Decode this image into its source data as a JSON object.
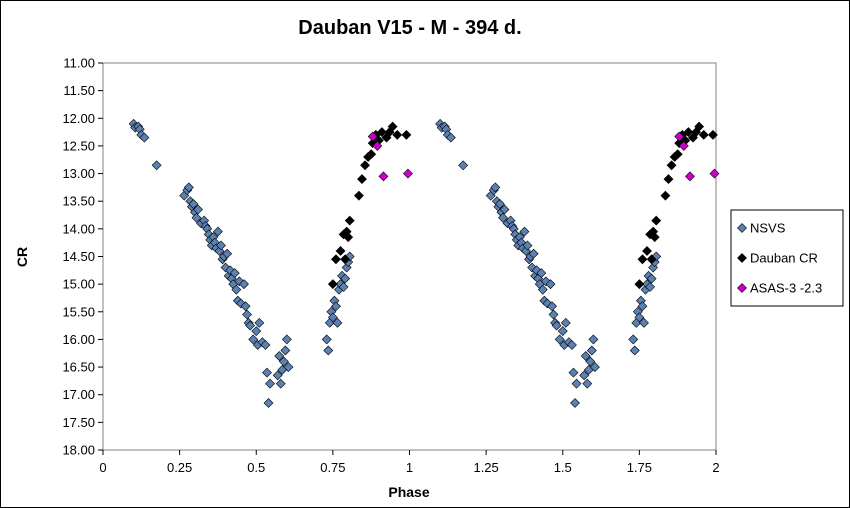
{
  "chart_data": {
    "type": "scatter",
    "title": "Dauban V15 - M - 394 d.",
    "xlabel": "Phase",
    "ylabel": "CR",
    "xlim": [
      0,
      2
    ],
    "ylim": [
      11.0,
      18.0
    ],
    "y_inverted": true,
    "x_ticks": [
      "0",
      "0.25",
      "0.5",
      "0.75",
      "1",
      "1.25",
      "1.5",
      "1.75",
      "2"
    ],
    "y_ticks": [
      "11.00",
      "11.50",
      "12.00",
      "12.50",
      "13.00",
      "13.50",
      "14.00",
      "14.50",
      "15.00",
      "15.50",
      "16.00",
      "16.50",
      "17.00",
      "17.50",
      "18.00"
    ],
    "grid": false,
    "legend_position": "right",
    "series": [
      {
        "name": "NSVS",
        "color": "#5B80B2",
        "marker": "diamond",
        "points": [
          [
            0.1,
            12.1
          ],
          [
            0.105,
            12.17
          ],
          [
            0.115,
            12.15
          ],
          [
            0.12,
            12.2
          ],
          [
            0.125,
            12.3
          ],
          [
            0.135,
            12.35
          ],
          [
            0.175,
            12.85
          ],
          [
            0.265,
            13.4
          ],
          [
            0.275,
            13.3
          ],
          [
            0.28,
            13.25
          ],
          [
            0.285,
            13.5
          ],
          [
            0.29,
            13.6
          ],
          [
            0.295,
            13.55
          ],
          [
            0.3,
            13.7
          ],
          [
            0.305,
            13.8
          ],
          [
            0.31,
            13.65
          ],
          [
            0.32,
            13.9
          ],
          [
            0.33,
            13.85
          ],
          [
            0.335,
            13.95
          ],
          [
            0.34,
            14.0
          ],
          [
            0.345,
            14.1
          ],
          [
            0.35,
            14.2
          ],
          [
            0.355,
            14.3
          ],
          [
            0.36,
            14.15
          ],
          [
            0.365,
            14.25
          ],
          [
            0.37,
            14.35
          ],
          [
            0.375,
            14.05
          ],
          [
            0.38,
            14.4
          ],
          [
            0.385,
            14.3
          ],
          [
            0.39,
            14.55
          ],
          [
            0.395,
            14.5
          ],
          [
            0.4,
            14.7
          ],
          [
            0.405,
            14.45
          ],
          [
            0.41,
            14.85
          ],
          [
            0.415,
            14.75
          ],
          [
            0.42,
            14.9
          ],
          [
            0.425,
            15.0
          ],
          [
            0.43,
            14.8
          ],
          [
            0.435,
            15.1
          ],
          [
            0.44,
            15.3
          ],
          [
            0.445,
            14.95
          ],
          [
            0.45,
            15.35
          ],
          [
            0.46,
            15.0
          ],
          [
            0.465,
            15.4
          ],
          [
            0.47,
            15.55
          ],
          [
            0.475,
            15.7
          ],
          [
            0.48,
            15.75
          ],
          [
            0.49,
            16.0
          ],
          [
            0.5,
            15.85
          ],
          [
            0.505,
            16.1
          ],
          [
            0.51,
            15.7
          ],
          [
            0.52,
            16.05
          ],
          [
            0.53,
            16.1
          ],
          [
            0.535,
            16.6
          ],
          [
            0.54,
            17.15
          ],
          [
            0.545,
            16.8
          ],
          [
            0.57,
            16.65
          ],
          [
            0.575,
            16.3
          ],
          [
            0.58,
            16.8
          ],
          [
            0.585,
            16.55
          ],
          [
            0.59,
            16.4
          ],
          [
            0.595,
            16.2
          ],
          [
            0.6,
            16.0
          ],
          [
            0.605,
            16.5
          ],
          [
            0.73,
            16.0
          ],
          [
            0.735,
            16.2
          ],
          [
            0.74,
            15.7
          ],
          [
            0.745,
            15.5
          ],
          [
            0.75,
            15.6
          ],
          [
            0.755,
            15.3
          ],
          [
            0.76,
            15.4
          ],
          [
            0.765,
            15.7
          ],
          [
            0.77,
            15.1
          ],
          [
            0.775,
            15.0
          ],
          [
            0.78,
            14.85
          ],
          [
            0.785,
            15.05
          ],
          [
            0.79,
            14.9
          ],
          [
            0.795,
            14.7
          ],
          [
            0.8,
            14.6
          ],
          [
            0.805,
            14.5
          ],
          [
            1.1,
            12.1
          ],
          [
            1.105,
            12.17
          ],
          [
            1.115,
            12.15
          ],
          [
            1.12,
            12.2
          ],
          [
            1.125,
            12.3
          ],
          [
            1.135,
            12.35
          ],
          [
            1.175,
            12.85
          ],
          [
            1.265,
            13.4
          ],
          [
            1.275,
            13.3
          ],
          [
            1.28,
            13.25
          ],
          [
            1.285,
            13.5
          ],
          [
            1.29,
            13.6
          ],
          [
            1.295,
            13.55
          ],
          [
            1.3,
            13.7
          ],
          [
            1.305,
            13.8
          ],
          [
            1.31,
            13.65
          ],
          [
            1.32,
            13.9
          ],
          [
            1.33,
            13.85
          ],
          [
            1.335,
            13.95
          ],
          [
            1.34,
            14.0
          ],
          [
            1.345,
            14.1
          ],
          [
            1.35,
            14.2
          ],
          [
            1.355,
            14.3
          ],
          [
            1.36,
            14.15
          ],
          [
            1.365,
            14.25
          ],
          [
            1.37,
            14.35
          ],
          [
            1.375,
            14.05
          ],
          [
            1.38,
            14.4
          ],
          [
            1.385,
            14.3
          ],
          [
            1.39,
            14.55
          ],
          [
            1.395,
            14.5
          ],
          [
            1.4,
            14.7
          ],
          [
            1.405,
            14.45
          ],
          [
            1.41,
            14.85
          ],
          [
            1.415,
            14.75
          ],
          [
            1.42,
            14.9
          ],
          [
            1.425,
            15.0
          ],
          [
            1.43,
            14.8
          ],
          [
            1.435,
            15.1
          ],
          [
            1.44,
            15.3
          ],
          [
            1.445,
            14.95
          ],
          [
            1.45,
            15.35
          ],
          [
            1.46,
            15.0
          ],
          [
            1.465,
            15.4
          ],
          [
            1.47,
            15.55
          ],
          [
            1.475,
            15.7
          ],
          [
            1.48,
            15.75
          ],
          [
            1.49,
            16.0
          ],
          [
            1.5,
            15.85
          ],
          [
            1.505,
            16.1
          ],
          [
            1.51,
            15.7
          ],
          [
            1.52,
            16.05
          ],
          [
            1.53,
            16.1
          ],
          [
            1.535,
            16.6
          ],
          [
            1.54,
            17.15
          ],
          [
            1.545,
            16.8
          ],
          [
            1.57,
            16.65
          ],
          [
            1.575,
            16.3
          ],
          [
            1.58,
            16.8
          ],
          [
            1.585,
            16.55
          ],
          [
            1.59,
            16.4
          ],
          [
            1.595,
            16.2
          ],
          [
            1.6,
            16.0
          ],
          [
            1.605,
            16.5
          ],
          [
            1.73,
            16.0
          ],
          [
            1.735,
            16.2
          ],
          [
            1.74,
            15.7
          ],
          [
            1.745,
            15.5
          ],
          [
            1.75,
            15.6
          ],
          [
            1.755,
            15.3
          ],
          [
            1.76,
            15.4
          ],
          [
            1.765,
            15.7
          ],
          [
            1.77,
            15.1
          ],
          [
            1.775,
            15.0
          ],
          [
            1.78,
            14.85
          ],
          [
            1.785,
            15.05
          ],
          [
            1.79,
            14.9
          ],
          [
            1.795,
            14.7
          ],
          [
            1.8,
            14.6
          ],
          [
            1.805,
            14.5
          ]
        ]
      },
      {
        "name": "Dauban CR",
        "color": "#000000",
        "marker": "diamond",
        "points": [
          [
            0.75,
            15.0
          ],
          [
            0.76,
            14.55
          ],
          [
            0.775,
            14.4
          ],
          [
            0.785,
            14.1
          ],
          [
            0.79,
            14.55
          ],
          [
            0.795,
            14.05
          ],
          [
            0.8,
            14.15
          ],
          [
            0.805,
            13.85
          ],
          [
            0.835,
            13.4
          ],
          [
            0.845,
            13.1
          ],
          [
            0.855,
            12.85
          ],
          [
            0.865,
            12.7
          ],
          [
            0.875,
            12.65
          ],
          [
            0.88,
            12.45
          ],
          [
            0.89,
            12.3
          ],
          [
            0.9,
            12.4
          ],
          [
            0.91,
            12.25
          ],
          [
            0.925,
            12.35
          ],
          [
            0.935,
            12.25
          ],
          [
            0.945,
            12.15
          ],
          [
            0.96,
            12.3
          ],
          [
            0.99,
            12.3
          ],
          [
            1.75,
            15.0
          ],
          [
            1.76,
            14.55
          ],
          [
            1.775,
            14.4
          ],
          [
            1.785,
            14.1
          ],
          [
            1.79,
            14.55
          ],
          [
            1.795,
            14.05
          ],
          [
            1.8,
            14.15
          ],
          [
            1.805,
            13.85
          ],
          [
            1.835,
            13.4
          ],
          [
            1.845,
            13.1
          ],
          [
            1.855,
            12.85
          ],
          [
            1.865,
            12.7
          ],
          [
            1.875,
            12.65
          ],
          [
            1.88,
            12.45
          ],
          [
            1.89,
            12.3
          ],
          [
            1.9,
            12.4
          ],
          [
            1.91,
            12.25
          ],
          [
            1.925,
            12.35
          ],
          [
            1.935,
            12.25
          ],
          [
            1.945,
            12.15
          ],
          [
            1.96,
            12.3
          ],
          [
            1.99,
            12.3
          ]
        ]
      },
      {
        "name": "ASAS-3 -2.3",
        "color": "#CC00CC",
        "marker": "diamond",
        "points": [
          [
            0.88,
            12.33
          ],
          [
            0.895,
            12.5
          ],
          [
            0.915,
            13.05
          ],
          [
            0.995,
            13.0
          ],
          [
            1.88,
            12.33
          ],
          [
            1.895,
            12.5
          ],
          [
            1.915,
            13.05
          ],
          [
            1.995,
            13.0
          ]
        ]
      }
    ]
  }
}
